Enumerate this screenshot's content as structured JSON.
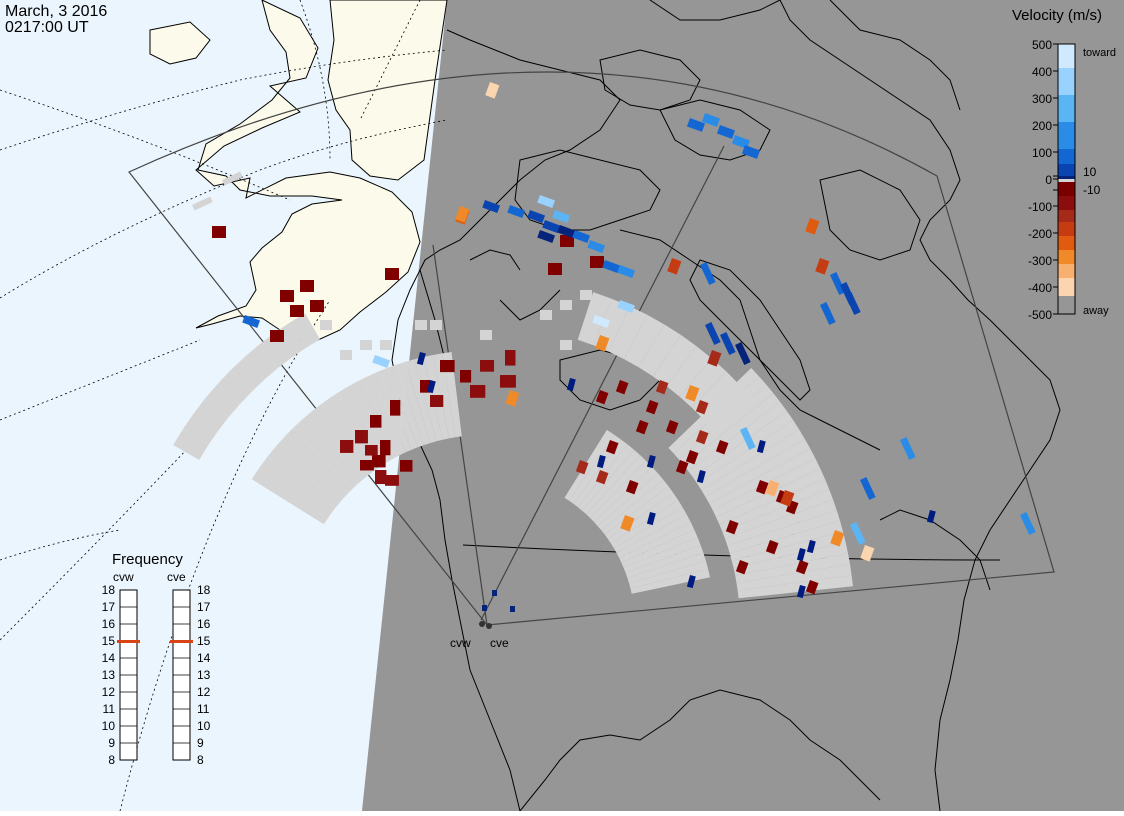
{
  "header": {
    "date": "March, 3 2016",
    "time": "0217:00 UT"
  },
  "velocity_scale": {
    "title": "Velocity (m/s)",
    "toward_label": "toward",
    "away_label": "away",
    "ticks": [
      "500",
      "400",
      "300",
      "200",
      "100",
      "10",
      "0",
      "-10",
      "-100",
      "-200",
      "-300",
      "-400",
      "-500"
    ],
    "colors": [
      "#cfe9ff",
      "#9ad2ff",
      "#5bb4f4",
      "#2a8ce6",
      "#1467d2",
      "#0a44b0",
      "#06237a",
      "#7a0000",
      "#8c0d0d",
      "#a52a1a",
      "#c63c12",
      "#e05a10",
      "#f08a28",
      "#f8b070",
      "#fbd5b0"
    ],
    "ground_scatter_color": "#d4d4d4"
  },
  "frequency_panel": {
    "title": "Frequency",
    "radars": [
      {
        "name": "cvw",
        "frequency_mhz": 15
      },
      {
        "name": "cve",
        "frequency_mhz": 15
      }
    ],
    "ticks": [
      "18",
      "17",
      "16",
      "15",
      "14",
      "13",
      "12",
      "11",
      "10",
      "9",
      "8"
    ]
  },
  "sites": [
    {
      "name": "cvw"
    },
    {
      "name": "cve"
    }
  ],
  "colors": {
    "ocean_day": "#eaf5fd",
    "night": "#969696",
    "land_day": "#fcfaea",
    "frequency_marker": "#d84414"
  }
}
